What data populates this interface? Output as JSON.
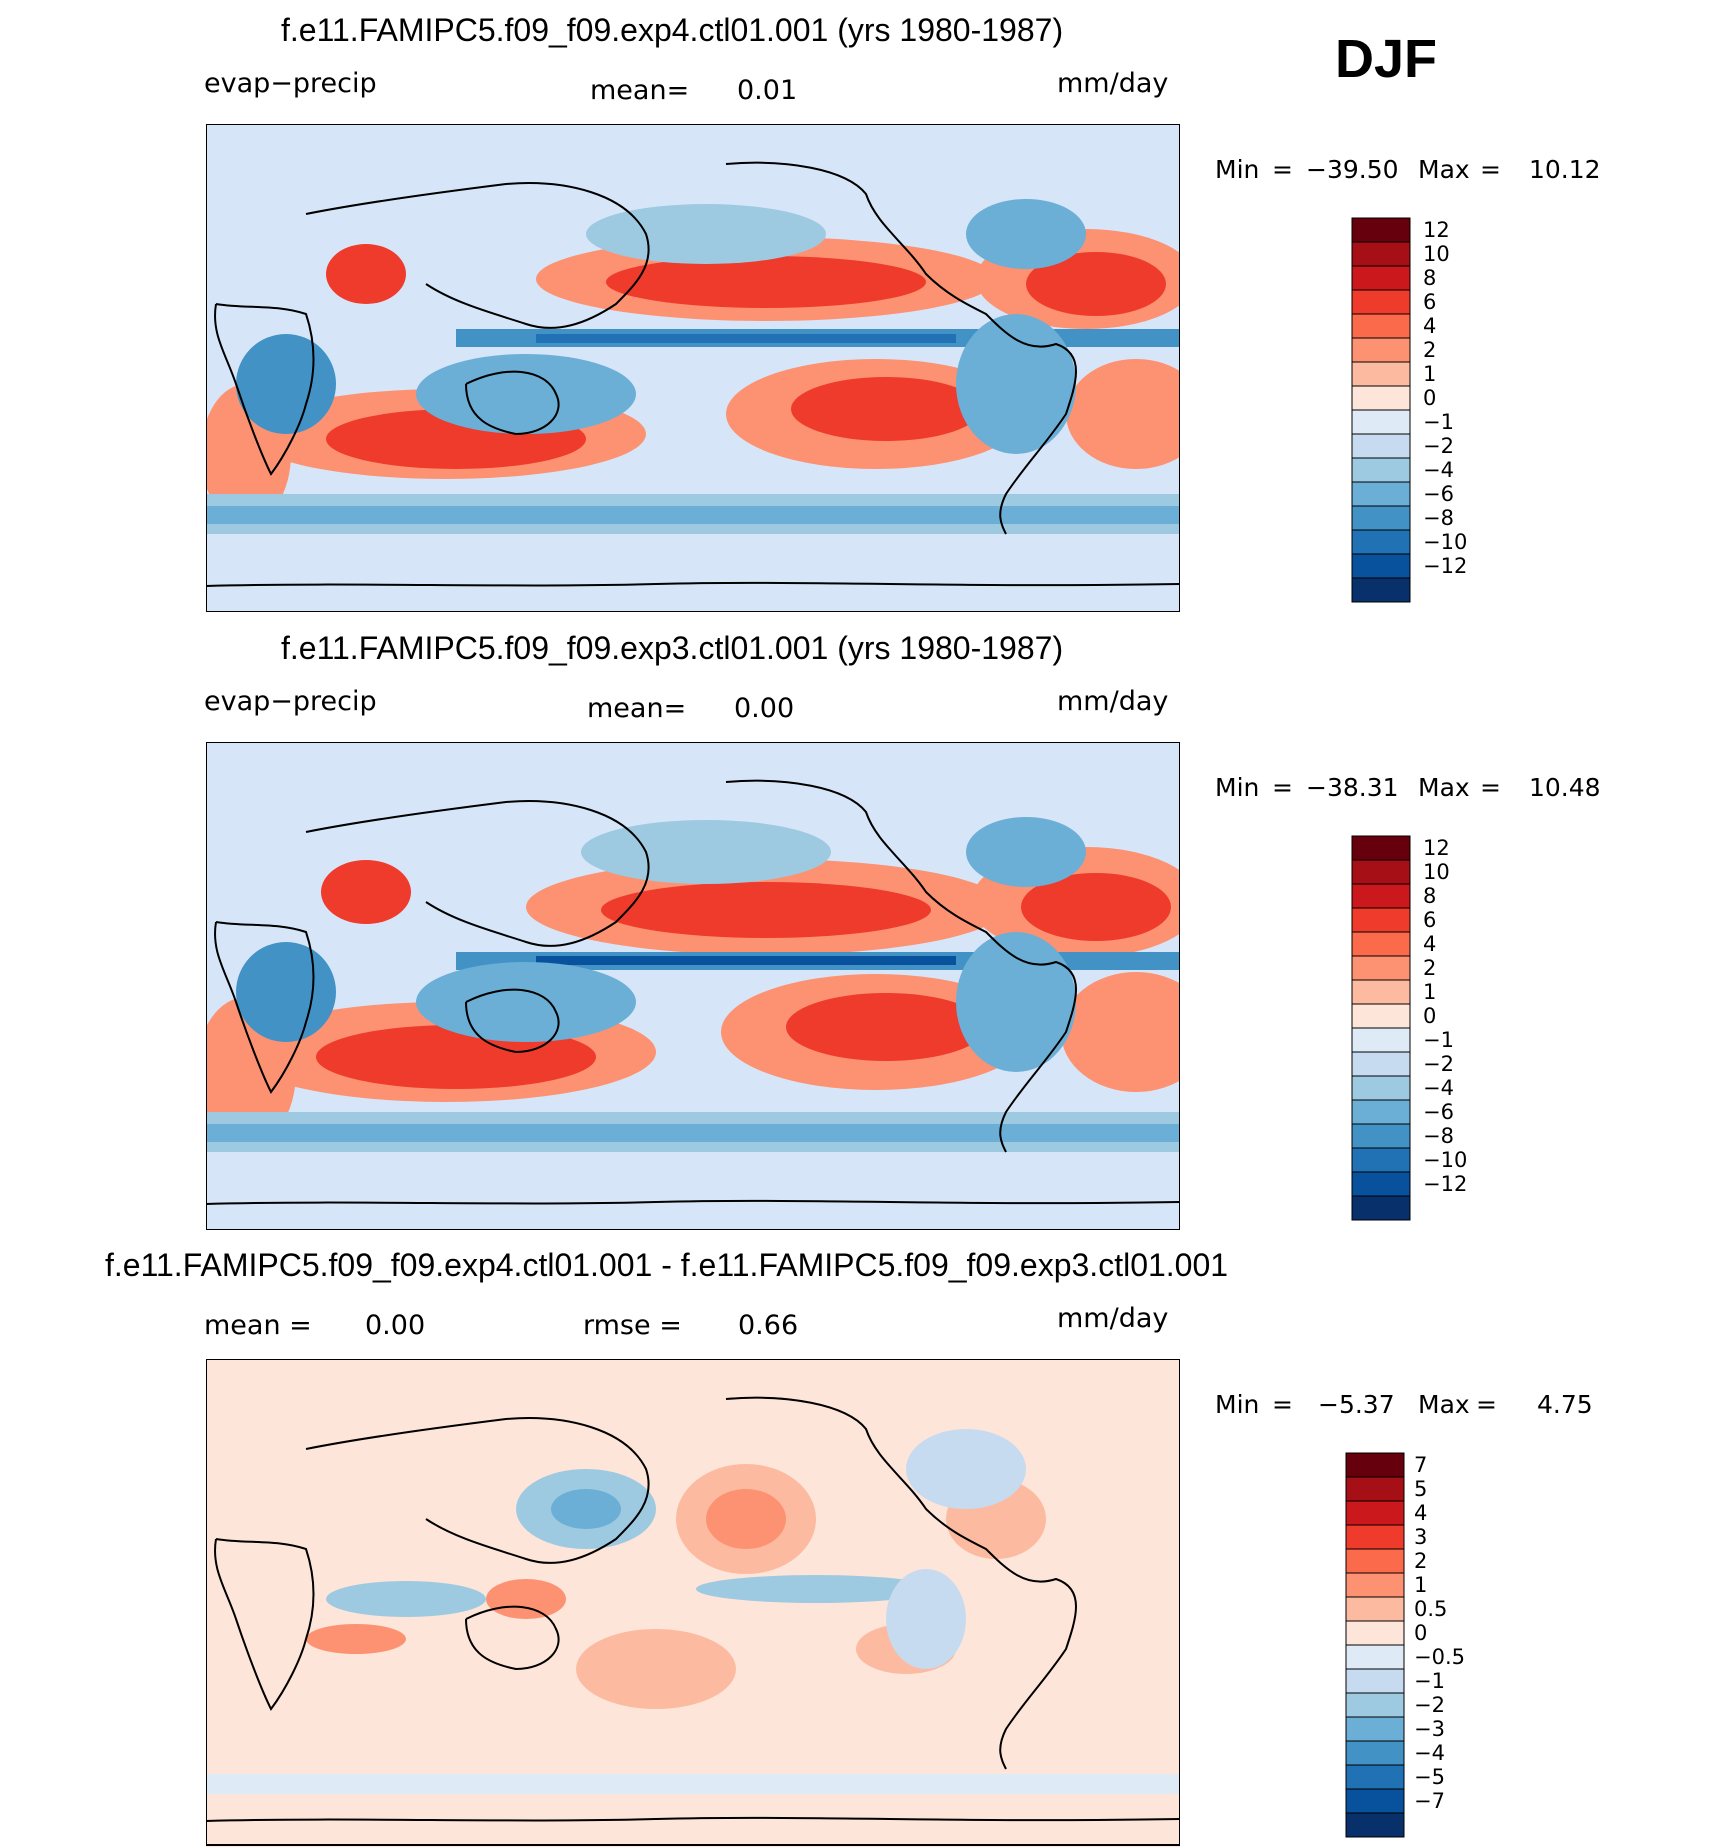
{
  "season": "DJF",
  "panels": [
    {
      "title": "f.e11.FAMIPC5.f09_f09.exp4.ctl01.001 (yrs 1980-1987)",
      "variable": "evap−precip",
      "mean_label": "mean=",
      "mean_value": "0.01",
      "units": "mm/day",
      "min_label": "Min",
      "min_value": "−39.50",
      "max_label": "Max",
      "max_value": "10.12",
      "colorbar_labels": [
        "12",
        "10",
        "8",
        "6",
        "4",
        "2",
        "1",
        "0",
        "−1",
        "−2",
        "−4",
        "−6",
        "−8",
        "−10",
        "−12"
      ]
    },
    {
      "title": "f.e11.FAMIPC5.f09_f09.exp3.ctl01.001 (yrs 1980-1987)",
      "variable": "evap−precip",
      "mean_label": "mean=",
      "mean_value": "0.00",
      "units": "mm/day",
      "min_label": "Min",
      "min_value": "−38.31",
      "max_label": "Max",
      "max_value": "10.48",
      "colorbar_labels": [
        "12",
        "10",
        "8",
        "6",
        "4",
        "2",
        "1",
        "0",
        "−1",
        "−2",
        "−4",
        "−6",
        "−8",
        "−10",
        "−12"
      ]
    },
    {
      "title": "f.e11.FAMIPC5.f09_f09.exp4.ctl01.001 - f.e11.FAMIPC5.f09_f09.exp3.ctl01.001",
      "mean_label": "mean  =",
      "mean_value": "0.00",
      "rmse_label": "rmse  =",
      "rmse_value": "0.66",
      "units": "mm/day",
      "min_label": "Min",
      "min_value": "−5.37",
      "max_label": "Max",
      "max_value": "4.75",
      "colorbar_labels": [
        "7",
        "5",
        "4",
        "3",
        "2",
        "1",
        "0.5",
        "0",
        "−0.5",
        "−1",
        "−2",
        "−3",
        "−4",
        "−5",
        "−7"
      ]
    }
  ],
  "colors": {
    "colorbar": [
      "#67000d",
      "#a50f15",
      "#cb181d",
      "#ef3b2c",
      "#fb6a4a",
      "#fc9272",
      "#fcbba1",
      "#fee5d9",
      "#deebf7",
      "#c6dbef",
      "#9ecae1",
      "#6baed6",
      "#4292c6",
      "#2171b5",
      "#08519c",
      "#08306b"
    ],
    "land_bg": "#d6e6f8",
    "coast": "#000000"
  }
}
